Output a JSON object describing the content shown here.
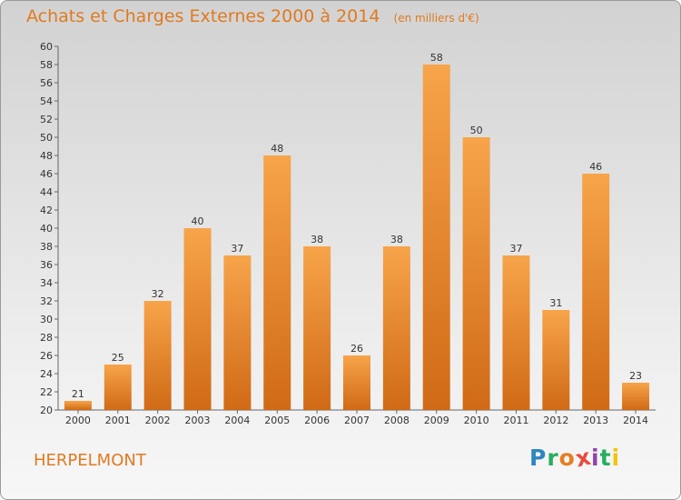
{
  "header": {
    "title": "Achats et Charges Externes 2000 à 2014",
    "subtitle": "(en milliers d'€)"
  },
  "place": "HERPELMONT",
  "brand": {
    "letters": [
      "P",
      "r",
      "o",
      "x",
      "i",
      "t",
      "i"
    ],
    "colors": [
      "#2e86c1",
      "#27ae60",
      "#e67e22",
      "#e74c3c",
      "#8e44ad",
      "#27ae60",
      "#f1c40f"
    ]
  },
  "colors": {
    "bar_light": "#f7a44a",
    "bar_dark": "#d06a16",
    "text": "#e07a20"
  },
  "chart_data": {
    "type": "bar",
    "title": "Achats et Charges Externes 2000 à 2014",
    "categories": [
      "2000",
      "2001",
      "2002",
      "2003",
      "2004",
      "2005",
      "2006",
      "2007",
      "2008",
      "2009",
      "2010",
      "2011",
      "2012",
      "2013",
      "2014"
    ],
    "values": [
      21,
      25,
      32,
      40,
      37,
      48,
      38,
      26,
      38,
      58,
      50,
      37,
      31,
      46,
      23
    ],
    "ylim": [
      20,
      60
    ],
    "ytick_step": 2,
    "grid": false,
    "legend": "none"
  }
}
